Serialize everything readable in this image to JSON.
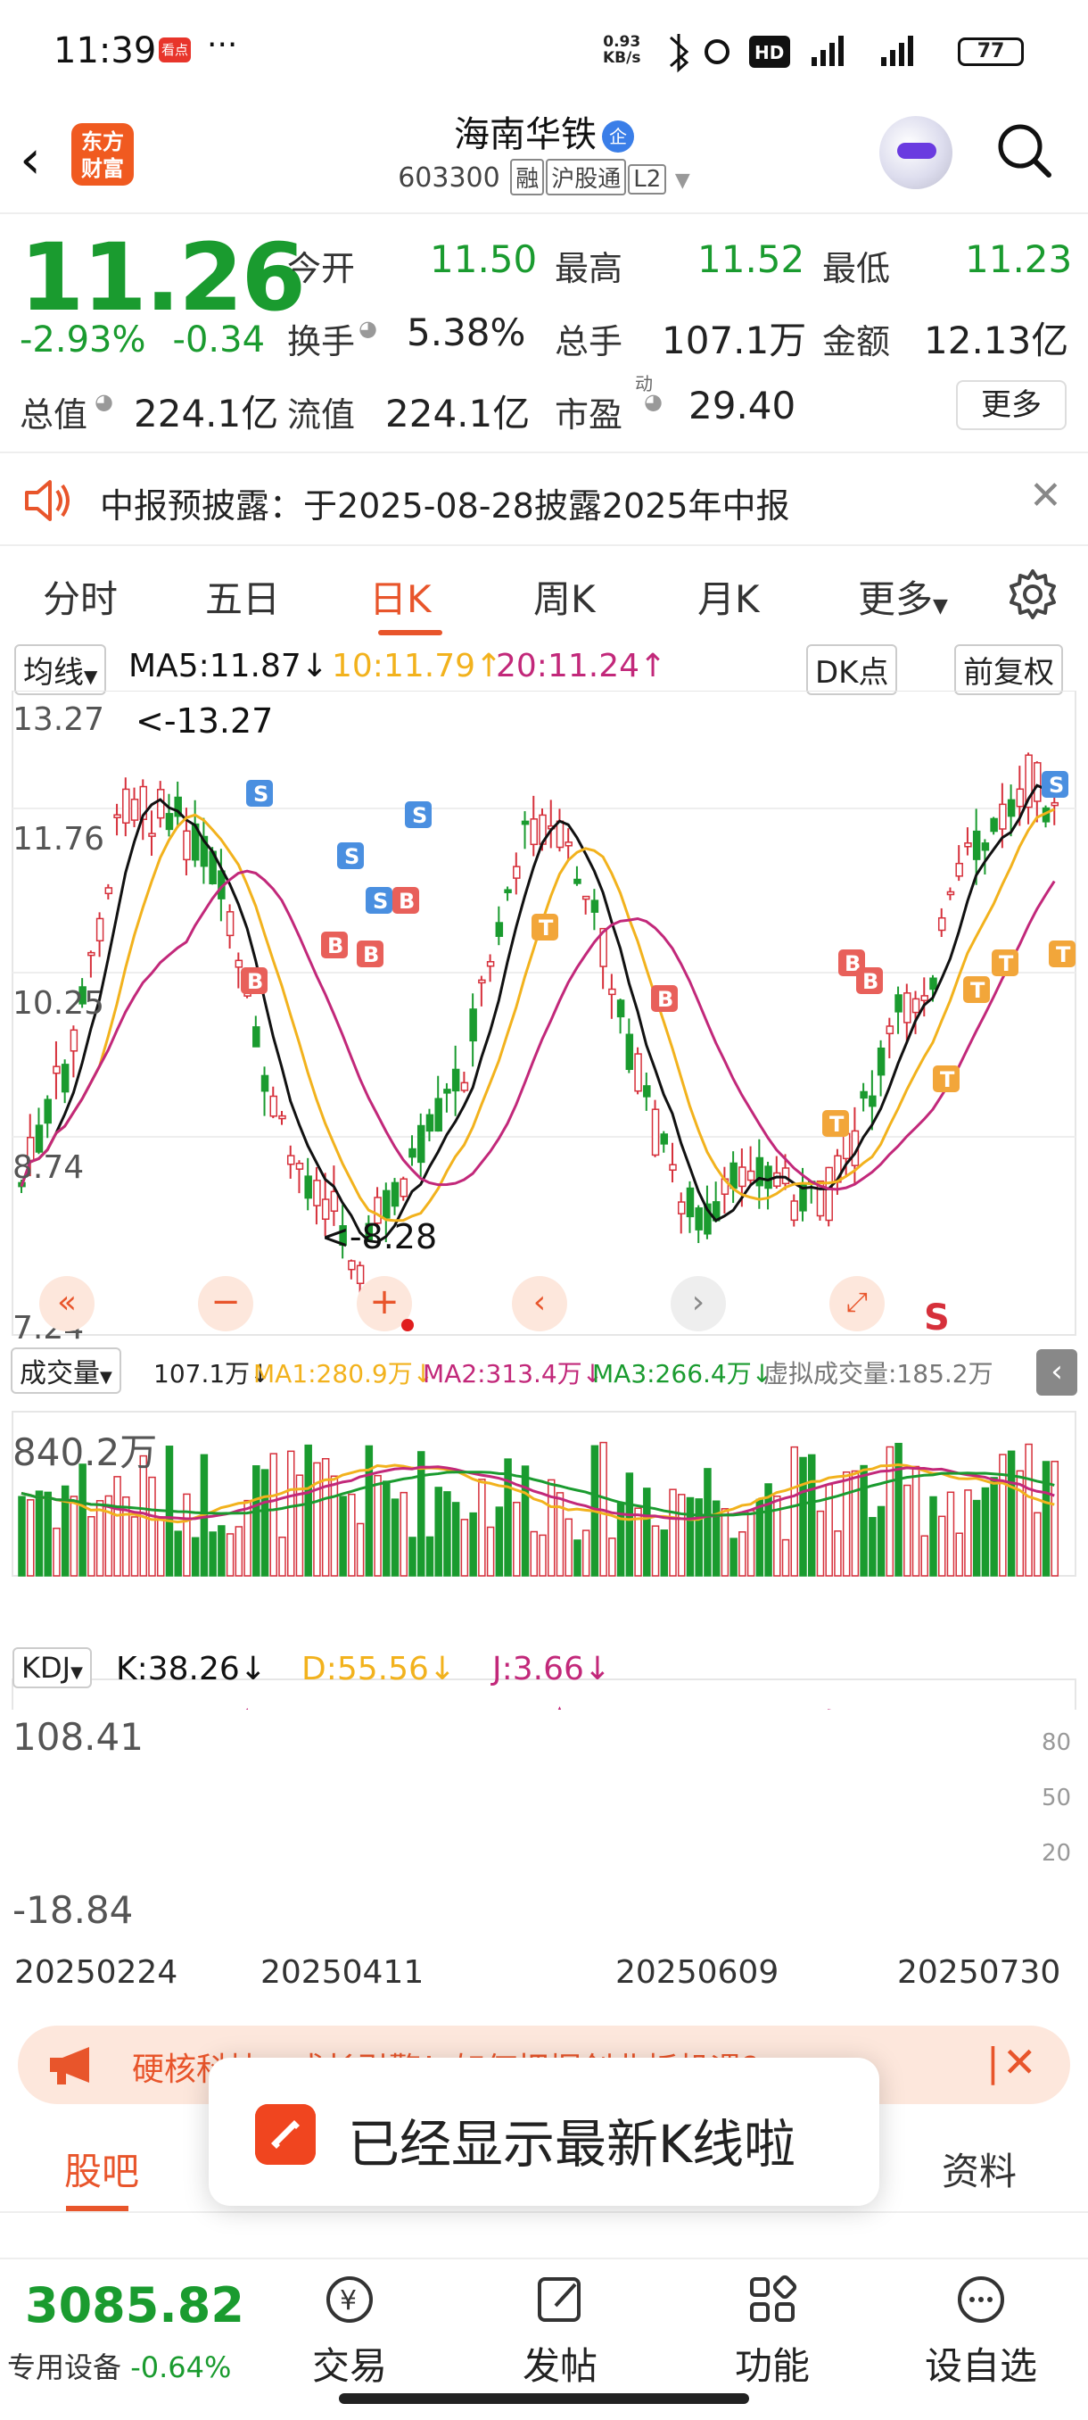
{
  "status_bar": {
    "time": "11:39",
    "app_badge": "看点",
    "dots": "···",
    "net_speed": "0.93",
    "net_unit": "KB/s",
    "battery": "77"
  },
  "header": {
    "logo": "东方财富",
    "stock_name": "海南华铁",
    "badge": "企",
    "code": "603300",
    "tags": [
      "融",
      "沪股通",
      "L2"
    ]
  },
  "quote": {
    "price": "11.26",
    "change_pct": "-2.93%",
    "change": "-0.34",
    "rows": [
      [
        {
          "label": "今开",
          "value": "11.50",
          "green": true
        },
        {
          "label": "最高",
          "value": "11.52",
          "green": true
        },
        {
          "label": "最低",
          "value": "11.23",
          "green": true
        }
      ],
      [
        {
          "label": "换手",
          "value": "5.38%"
        },
        {
          "label": "总手",
          "value": "107.1万"
        },
        {
          "label": "金额",
          "value": "12.13亿"
        }
      ],
      [
        {
          "label": "总值",
          "value": "224.1亿"
        },
        {
          "label": "流值",
          "value": "224.1亿"
        },
        {
          "label": "市盈",
          "value": "29.40"
        }
      ]
    ],
    "more": "更多"
  },
  "notice": {
    "text": "中报预披露：于2025-08-28披露2025年中报"
  },
  "tabs": [
    "分时",
    "五日",
    "日K",
    "周K",
    "月K",
    "更多"
  ],
  "active_tab": "日K",
  "kline": {
    "ma_selector": "均线",
    "ma5": "MA5:11.87",
    "ma10": "10:11.79",
    "ma20": "20:11.24",
    "dk_label": "DK点",
    "fq_label": "前复权",
    "y_labels": [
      "13.27",
      "11.76",
      "10.25",
      "8.74",
      "7.24"
    ],
    "max_label": "<-13.27",
    "min_label": "<-8.28",
    "s_mark": "S",
    "colors": {
      "up": "#d6303b",
      "down": "#1a9b2f",
      "ma5": "#111111",
      "ma10": "#f2b21d",
      "ma20": "#c2287a"
    }
  },
  "volume": {
    "selector": "成交量",
    "vol": "107.1万",
    "ma1": "MA1:280.9万",
    "ma2": "MA2:313.4万",
    "ma3": "MA3:266.4万",
    "virtual": "虚拟成交量:185.2万",
    "y_label": "840.2万"
  },
  "kdj": {
    "selector": "KDJ",
    "k": "K:38.26",
    "d": "D:55.56",
    "j": "J:3.66",
    "y_top": "108.41",
    "y_bottom": "-18.84",
    "right_labels": [
      "80",
      "50",
      "20"
    ],
    "dates": [
      "20250224",
      "20250411",
      "20250609",
      "20250730"
    ]
  },
  "banner": {
    "text": "硬核科技：成长引擎！如何把握创业板机遇？"
  },
  "toast": {
    "text": "已经显示最新K线啦"
  },
  "sub_tabs": {
    "active": "股吧",
    "right": "资料"
  },
  "bottom": {
    "index_value": "3085.82",
    "index_name": "专用设备",
    "index_change": "-0.64%",
    "nav": [
      "交易",
      "发帖",
      "功能",
      "设自选"
    ]
  }
}
